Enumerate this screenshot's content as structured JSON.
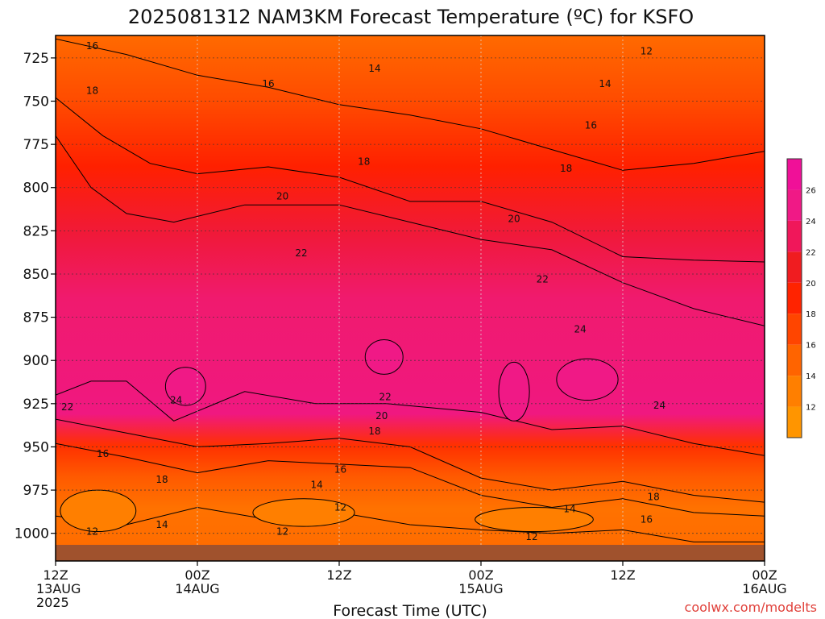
{
  "title": "2025081312 NAM3KM Forecast Temperature (ºC) for KSFO",
  "credit": "coolwx.com/modelts",
  "chart_data": {
    "type": "heatmap",
    "title": "2025081312 NAM3KM Forecast Temperature (ºC) for KSFO",
    "xlabel": "Forecast Time (UTC)",
    "ylabel": "",
    "x_ticks": [
      {
        "hour": 0,
        "lines": [
          "12Z",
          "13AUG",
          "2025"
        ]
      },
      {
        "hour": 12,
        "lines": [
          "00Z",
          "14AUG"
        ]
      },
      {
        "hour": 24,
        "lines": [
          "12Z"
        ]
      },
      {
        "hour": 36,
        "lines": [
          "00Z",
          "15AUG"
        ]
      },
      {
        "hour": 48,
        "lines": [
          "12Z"
        ]
      },
      {
        "hour": 60,
        "lines": [
          "00Z",
          "16AUG"
        ]
      }
    ],
    "xlim": [
      0,
      60
    ],
    "y_ticks": [
      725,
      750,
      775,
      800,
      825,
      850,
      875,
      900,
      925,
      950,
      975,
      1000
    ],
    "ylim": [
      712,
      1016
    ],
    "grid": true,
    "colorbar_ticks": [
      12,
      14,
      16,
      18,
      20,
      22,
      24,
      26
    ],
    "colorbar_levels": [
      10,
      12,
      14,
      16,
      18,
      20,
      22,
      24,
      26,
      28
    ],
    "colorbar_colors": [
      "#ff9500",
      "#ff7f00",
      "#ff6400",
      "#ff4500",
      "#ff2300",
      "#f01c20",
      "#f0175a",
      "#f01986",
      "#f01098"
    ],
    "surface_color": "#a0522d",
    "isotherms": [
      {
        "level": 16,
        "hours": [
          0,
          6,
          12,
          18,
          24,
          30,
          36,
          42,
          48,
          54,
          60
        ],
        "pressures": [
          714,
          723,
          735,
          742,
          752,
          758,
          766,
          778,
          790,
          786,
          779
        ]
      },
      {
        "level": 18,
        "hours": [
          0,
          4,
          8,
          12,
          18,
          24,
          30,
          36,
          42,
          48,
          54,
          60
        ],
        "pressures": [
          748,
          770,
          786,
          792,
          788,
          794,
          808,
          808,
          820,
          840,
          842,
          843
        ]
      },
      {
        "level": 20,
        "hours": [
          0,
          3,
          6,
          10,
          16,
          24,
          30,
          36,
          42,
          48,
          54,
          60
        ],
        "pressures": [
          770,
          800,
          815,
          820,
          810,
          810,
          820,
          830,
          836,
          855,
          870,
          880
        ]
      },
      {
        "level": 22,
        "hours": [
          0,
          3,
          6,
          10,
          16,
          22,
          28,
          36,
          42,
          48,
          54,
          60
        ],
        "pressures": [
          920,
          912,
          912,
          935,
          918,
          925,
          925,
          930,
          940,
          938,
          948,
          955
        ]
      },
      {
        "level": 18,
        "hours": [
          0,
          6,
          12,
          18,
          24,
          30,
          36,
          42,
          48,
          54,
          60
        ],
        "pressures": [
          934,
          942,
          950,
          948,
          945,
          950,
          968,
          975,
          970,
          978,
          982
        ]
      },
      {
        "level": 16,
        "hours": [
          0,
          6,
          12,
          18,
          24,
          30,
          36,
          42,
          48,
          54,
          60
        ],
        "pressures": [
          948,
          956,
          965,
          958,
          960,
          962,
          978,
          985,
          980,
          988,
          990
        ]
      },
      {
        "level": 12,
        "hours": [
          0,
          6,
          12,
          18,
          24,
          30,
          36,
          42,
          48,
          54,
          60
        ],
        "pressures": [
          990,
          995,
          985,
          992,
          988,
          995,
          998,
          1000,
          998,
          1005,
          1005
        ]
      }
    ],
    "closed_contours": [
      {
        "level": 24,
        "cx": 11,
        "cy": 915,
        "rx": 1.7,
        "ry": 11
      },
      {
        "level": 24,
        "cx": 27.8,
        "cy": 898,
        "rx": 1.6,
        "ry": 10
      },
      {
        "level": 24,
        "cx": 38.8,
        "cy": 918,
        "rx": 1.3,
        "ry": 17
      },
      {
        "level": 24,
        "cx": 45,
        "cy": 911,
        "rx": 2.6,
        "ry": 12
      },
      {
        "level": 12,
        "cx": 3.6,
        "cy": 987,
        "rx": 3.2,
        "ry": 12
      },
      {
        "level": 12,
        "cx": 21,
        "cy": 988,
        "rx": 4.3,
        "ry": 8
      },
      {
        "level": 12,
        "cx": 40.5,
        "cy": 992,
        "rx": 5,
        "ry": 7
      }
    ],
    "contour_labels": [
      {
        "text": "16",
        "hour": 3.1,
        "pressure": 718
      },
      {
        "text": "14",
        "hour": 27,
        "pressure": 731
      },
      {
        "text": "12",
        "hour": 50,
        "pressure": 721
      },
      {
        "text": "16",
        "hour": 18,
        "pressure": 740
      },
      {
        "text": "14",
        "hour": 46.5,
        "pressure": 740
      },
      {
        "text": "18",
        "hour": 3.1,
        "pressure": 744
      },
      {
        "text": "16",
        "hour": 45.3,
        "pressure": 764
      },
      {
        "text": "18",
        "hour": 26.1,
        "pressure": 785
      },
      {
        "text": "18",
        "hour": 43.2,
        "pressure": 789
      },
      {
        "text": "20",
        "hour": 19.2,
        "pressure": 805
      },
      {
        "text": "20",
        "hour": 38.8,
        "pressure": 818
      },
      {
        "text": "22",
        "hour": 20.8,
        "pressure": 838
      },
      {
        "text": "22",
        "hour": 41.2,
        "pressure": 853
      },
      {
        "text": "24",
        "hour": 44.4,
        "pressure": 882
      },
      {
        "text": "24",
        "hour": 10.2,
        "pressure": 923
      },
      {
        "text": "22",
        "hour": 1.0,
        "pressure": 927
      },
      {
        "text": "22",
        "hour": 27.9,
        "pressure": 921
      },
      {
        "text": "20",
        "hour": 27.6,
        "pressure": 932
      },
      {
        "text": "18",
        "hour": 27.0,
        "pressure": 941
      },
      {
        "text": "24",
        "hour": 51.1,
        "pressure": 926
      },
      {
        "text": "16",
        "hour": 4.0,
        "pressure": 954
      },
      {
        "text": "16",
        "hour": 24.1,
        "pressure": 963
      },
      {
        "text": "18",
        "hour": 9.0,
        "pressure": 969
      },
      {
        "text": "14",
        "hour": 22.1,
        "pressure": 972
      },
      {
        "text": "12",
        "hour": 24.1,
        "pressure": 985
      },
      {
        "text": "14",
        "hour": 9.0,
        "pressure": 995
      },
      {
        "text": "12",
        "hour": 3.1,
        "pressure": 999
      },
      {
        "text": "12",
        "hour": 19.2,
        "pressure": 999
      },
      {
        "text": "18",
        "hour": 50.6,
        "pressure": 979
      },
      {
        "text": "14",
        "hour": 43.5,
        "pressure": 986
      },
      {
        "text": "16",
        "hour": 50.0,
        "pressure": 992
      },
      {
        "text": "12",
        "hour": 40.3,
        "pressure": 1002
      }
    ]
  }
}
